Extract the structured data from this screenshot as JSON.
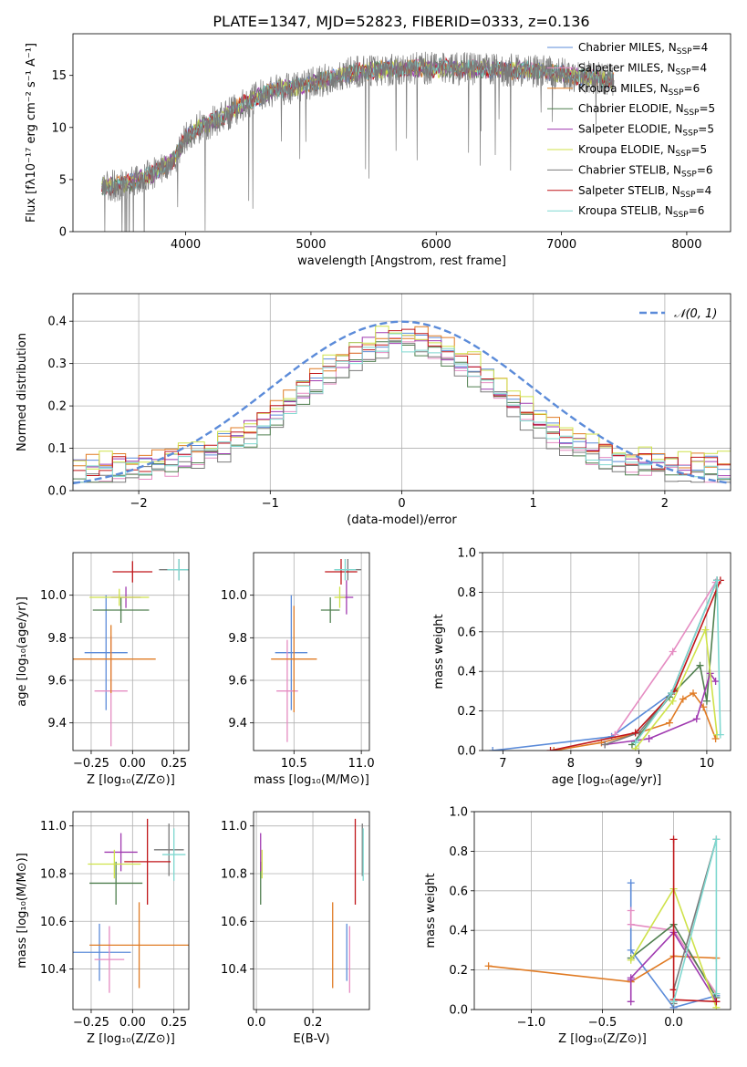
{
  "figure": {
    "title": "PLATE=1347, MJD=52823, FIBERID=0333, z=0.136"
  },
  "colors": {
    "chabrier_miles": "#5b8bd9",
    "salpeter_miles": "#e58cc2",
    "kroupa_miles": "#e07b24",
    "chabrier_elodie": "#4f7f4f",
    "salpeter_elodie": "#a03ab0",
    "kroupa_elodie": "#cfe24a",
    "chabrier_stelib": "#7a7a7a",
    "salpeter_stelib": "#c0161a",
    "kroupa_stelib": "#7fd8d0",
    "gauss": "#5b8bd9",
    "grid": "#b0b0b0"
  },
  "chart_data": [
    {
      "id": "spectrum",
      "type": "line",
      "xlabel": "wavelength [Angstrom, rest frame]",
      "ylabel": "Flux [fλ10⁻¹⁷ erg cm⁻² s⁻¹ A⁻¹]",
      "xlim": [
        3100,
        8350
      ],
      "ylim": [
        0,
        19
      ],
      "xticks": [
        "4000",
        "5000",
        "6000",
        "7000",
        "8000"
      ],
      "yticks": [
        "0",
        "5",
        "10",
        "15"
      ],
      "xtick_values": [
        4000,
        5000,
        6000,
        7000,
        8000
      ],
      "ytick_values": [
        0,
        5,
        10,
        15
      ],
      "grid": false,
      "legend_position": "top-right",
      "continuum": {
        "wavelength": [
          3330,
          3500,
          3700,
          3900,
          4000,
          4100,
          4300,
          4500,
          4700,
          4900,
          5100,
          5300,
          5500,
          5700,
          5900,
          6100,
          6300,
          6500,
          6700,
          6900,
          7100,
          7300,
          7420
        ],
        "flux": [
          4.3,
          4.5,
          5.3,
          6.8,
          9.0,
          10.0,
          11.0,
          12.5,
          13.6,
          13.9,
          14.5,
          15.2,
          15.5,
          15.6,
          15.7,
          15.7,
          15.6,
          15.5,
          15.5,
          15.3,
          15.0,
          14.7,
          14.5
        ]
      },
      "series": [
        {
          "name": "Chabrier MILES, N_SSP=4",
          "label_main": "Chabrier MILES, N",
          "label_sub": "SSP",
          "label_end": "=4",
          "color_key": "chabrier_miles"
        },
        {
          "name": "Salpeter MILES, N_SSP=4",
          "label_main": "Salpeter MILES, N",
          "label_sub": "SSP",
          "label_end": "=4",
          "color_key": "salpeter_miles"
        },
        {
          "name": "Kroupa MILES, N_SSP=6",
          "label_main": "Kroupa MILES, N",
          "label_sub": "SSP",
          "label_end": "=6",
          "color_key": "kroupa_miles"
        },
        {
          "name": "Chabrier ELODIE, N_SSP=5",
          "label_main": "Chabrier ELODIE, N",
          "label_sub": "SSP",
          "label_end": "=5",
          "color_key": "chabrier_elodie"
        },
        {
          "name": "Salpeter ELODIE, N_SSP=5",
          "label_main": "Salpeter ELODIE, N",
          "label_sub": "SSP",
          "label_end": "=5",
          "color_key": "salpeter_elodie"
        },
        {
          "name": "Kroupa ELODIE, N_SSP=5",
          "label_main": "Kroupa ELODIE, N",
          "label_sub": "SSP",
          "label_end": "=5",
          "color_key": "kroupa_elodie"
        },
        {
          "name": "Chabrier STELIB, N_SSP=6",
          "label_main": "Chabrier STELIB, N",
          "label_sub": "SSP",
          "label_end": "=6",
          "color_key": "chabrier_stelib"
        },
        {
          "name": "Salpeter STELIB, N_SSP=4",
          "label_main": "Salpeter STELIB, N",
          "label_sub": "SSP",
          "label_end": "=4",
          "color_key": "salpeter_stelib"
        },
        {
          "name": "Kroupa STELIB, N_SSP=6",
          "label_main": "Kroupa STELIB, N",
          "label_sub": "SSP",
          "label_end": "=6",
          "color_key": "kroupa_stelib"
        }
      ]
    },
    {
      "id": "residuals",
      "type": "line",
      "xlabel": "(data-model)/error",
      "ylabel": "Normed distribution",
      "xlim": [
        -2.5,
        2.5
      ],
      "ylim": [
        0,
        0.465
      ],
      "xticks": [
        "−2",
        "−1",
        "0",
        "1",
        "2"
      ],
      "xtick_values": [
        -2,
        -1,
        0,
        1,
        2
      ],
      "yticks": [
        "0.0",
        "0.1",
        "0.2",
        "0.3",
        "0.4"
      ],
      "ytick_values": [
        0,
        0.1,
        0.2,
        0.3,
        0.4
      ],
      "grid": true,
      "legend_position": "top-right",
      "legend_label": "𝒩(0, 1)",
      "bin_width": 0.1,
      "bin_start": -2.5,
      "hist_offsets": [
        0.012,
        -0.008,
        0.02,
        -0.015,
        0.005,
        0.025,
        -0.02,
        0.01,
        -0.005
      ]
    },
    {
      "id": "age_vs_Z",
      "type": "scatter",
      "xlabel": "Z [log₁₀(Z/Z⊙)]",
      "ylabel": "age  [log₁₀(age/yr)]",
      "xlim": [
        -0.36,
        0.34
      ],
      "ylim": [
        9.27,
        10.2
      ],
      "xticks": [
        "−0.25",
        "0.00",
        "0.25"
      ],
      "xtick_values": [
        -0.25,
        0,
        0.25
      ],
      "yticks": [
        "9.4",
        "9.6",
        "9.8",
        "10.0"
      ],
      "ytick_values": [
        9.4,
        9.6,
        9.8,
        10.0
      ],
      "grid": true,
      "points": [
        {
          "x": -0.16,
          "xerr": 0.13,
          "y": 9.73,
          "yerr": 0.27,
          "color_key": "chabrier_miles"
        },
        {
          "x": -0.13,
          "xerr": 0.1,
          "y": 9.55,
          "yerr": 0.26,
          "color_key": "salpeter_miles"
        },
        {
          "x": -0.13,
          "xerr": 0.27,
          "y": 9.7,
          "yerr": 0.16,
          "color_key": "kroupa_miles"
        },
        {
          "x": -0.07,
          "xerr": 0.17,
          "y": 9.93,
          "yerr": 0.06,
          "color_key": "chabrier_elodie"
        },
        {
          "x": -0.04,
          "xerr": 0.09,
          "y": 9.99,
          "yerr": 0.05,
          "color_key": "salpeter_elodie"
        },
        {
          "x": -0.08,
          "xerr": 0.18,
          "y": 9.99,
          "yerr": 0.04,
          "color_key": "kroupa_elodie"
        },
        {
          "x": 0.28,
          "xerr": 0.12,
          "y": 10.12,
          "yerr": 0.05,
          "color_key": "chabrier_stelib"
        },
        {
          "x": 0.0,
          "xerr": 0.12,
          "y": 10.11,
          "yerr": 0.05,
          "color_key": "salpeter_stelib"
        },
        {
          "x": 0.28,
          "xerr": 0.07,
          "y": 10.12,
          "yerr": 0.05,
          "color_key": "kroupa_stelib"
        }
      ]
    },
    {
      "id": "age_vs_mass",
      "type": "scatter",
      "xlabel": "mass [log₁₀(M/M⊙)]",
      "ylabel": "",
      "xlim": [
        10.2,
        11.06
      ],
      "ylim": [
        9.27,
        10.2
      ],
      "xticks": [
        "10.5",
        "11.0"
      ],
      "xtick_values": [
        10.5,
        11.0
      ],
      "yticks": [
        "9.4",
        "9.6",
        "9.8",
        "10.0"
      ],
      "ytick_values": [
        9.4,
        9.6,
        9.8,
        10.0
      ],
      "grid": true,
      "points": [
        {
          "x": 10.48,
          "xerr": 0.12,
          "y": 9.73,
          "yerr": 0.27,
          "color_key": "chabrier_miles"
        },
        {
          "x": 10.45,
          "xerr": 0.08,
          "y": 9.55,
          "yerr": 0.24,
          "color_key": "salpeter_miles"
        },
        {
          "x": 10.5,
          "xerr": 0.17,
          "y": 9.7,
          "yerr": 0.25,
          "color_key": "kroupa_miles"
        },
        {
          "x": 10.77,
          "xerr": 0.07,
          "y": 9.93,
          "yerr": 0.06,
          "color_key": "chabrier_elodie"
        },
        {
          "x": 10.89,
          "xerr": 0.05,
          "y": 9.99,
          "yerr": 0.08,
          "color_key": "salpeter_elodie"
        },
        {
          "x": 10.84,
          "xerr": 0.04,
          "y": 9.99,
          "yerr": 0.05,
          "color_key": "kroupa_elodie"
        },
        {
          "x": 10.9,
          "xerr": 0.1,
          "y": 10.12,
          "yerr": 0.05,
          "color_key": "chabrier_stelib"
        },
        {
          "x": 10.85,
          "xerr": 0.12,
          "y": 10.11,
          "yerr": 0.06,
          "color_key": "salpeter_stelib"
        },
        {
          "x": 10.88,
          "xerr": 0.08,
          "y": 10.12,
          "yerr": 0.05,
          "color_key": "kroupa_stelib"
        }
      ]
    },
    {
      "id": "weight_vs_age",
      "type": "line",
      "xlabel": "age  [log₁₀(age/yr)]",
      "ylabel": "mass weight",
      "xlim": [
        6.7,
        10.35
      ],
      "ylim": [
        0,
        1.0
      ],
      "xticks": [
        "7",
        "8",
        "9",
        "10"
      ],
      "xtick_values": [
        7,
        8,
        9,
        10
      ],
      "yticks": [
        "0.0",
        "0.2",
        "0.4",
        "0.6",
        "0.8",
        "1.0"
      ],
      "ytick_values": [
        0,
        0.2,
        0.4,
        0.6,
        0.8,
        1.0
      ],
      "grid": true,
      "series": [
        {
          "color_key": "chabrier_miles",
          "x": [
            6.85,
            8.6,
            9.48,
            10.15
          ],
          "y": [
            0.0,
            0.07,
            0.29,
            0.86
          ]
        },
        {
          "color_key": "salpeter_miles",
          "x": [
            8.65,
            9.5,
            10.13
          ],
          "y": [
            0.08,
            0.5,
            0.85
          ]
        },
        {
          "color_key": "kroupa_miles",
          "x": [
            7.75,
            8.45,
            9.0,
            9.45,
            9.65,
            9.8,
            9.95,
            10.13
          ],
          "y": [
            0.0,
            0.04,
            0.09,
            0.14,
            0.26,
            0.29,
            0.22,
            0.06
          ]
        },
        {
          "color_key": "chabrier_elodie",
          "x": [
            8.9,
            9.45,
            9.9,
            10.0,
            10.15
          ],
          "y": [
            0.03,
            0.27,
            0.43,
            0.25,
            0.86
          ]
        },
        {
          "color_key": "salpeter_elodie",
          "x": [
            8.5,
            9.15,
            9.85,
            10.05,
            10.13
          ],
          "y": [
            0.03,
            0.06,
            0.16,
            0.39,
            0.35
          ]
        },
        {
          "color_key": "kroupa_elodie",
          "x": [
            8.95,
            9.5,
            9.98,
            10.15
          ],
          "y": [
            0.01,
            0.25,
            0.61,
            0.08
          ]
        },
        {
          "color_key": "chabrier_stelib",
          "x": [
            8.5,
            9.0,
            9.48,
            10.15
          ],
          "y": [
            0.03,
            0.09,
            0.29,
            0.86
          ]
        },
        {
          "color_key": "salpeter_stelib",
          "x": [
            7.7,
            8.95,
            9.52,
            10.2
          ],
          "y": [
            0.0,
            0.09,
            0.3,
            0.86
          ]
        },
        {
          "color_key": "kroupa_stelib",
          "x": [
            8.95,
            9.48,
            10.15,
            10.2
          ],
          "y": [
            0.04,
            0.29,
            0.86,
            0.08
          ]
        }
      ]
    },
    {
      "id": "mass_vs_Z",
      "type": "scatter",
      "xlabel": "Z [log₁₀(Z/Z⊙)]",
      "ylabel": "mass [log₁₀(M/M⊙)]",
      "xlim": [
        -0.36,
        0.34
      ],
      "ylim": [
        10.23,
        11.06
      ],
      "xticks": [
        "−0.25",
        "0.00",
        "0.25"
      ],
      "xtick_values": [
        -0.25,
        0,
        0.25
      ],
      "yticks": [
        "10.4",
        "10.6",
        "10.8",
        "11.0"
      ],
      "ytick_values": [
        10.4,
        10.6,
        10.8,
        11.0
      ],
      "grid": true,
      "points": [
        {
          "x": -0.2,
          "xerr": 0.19,
          "y": 10.47,
          "yerr": 0.12,
          "color_key": "chabrier_miles"
        },
        {
          "x": -0.14,
          "xerr": 0.09,
          "y": 10.44,
          "yerr": 0.14,
          "color_key": "salpeter_miles"
        },
        {
          "x": 0.04,
          "xerr": 0.3,
          "y": 10.5,
          "yerr": 0.18,
          "color_key": "kroupa_miles"
        },
        {
          "x": -0.1,
          "xerr": 0.16,
          "y": 10.76,
          "yerr": 0.09,
          "color_key": "chabrier_elodie"
        },
        {
          "x": -0.07,
          "xerr": 0.1,
          "y": 10.89,
          "yerr": 0.08,
          "color_key": "salpeter_elodie"
        },
        {
          "x": -0.11,
          "xerr": 0.16,
          "y": 10.84,
          "yerr": 0.06,
          "color_key": "kroupa_elodie"
        },
        {
          "x": 0.22,
          "xerr": 0.09,
          "y": 10.9,
          "yerr": 0.11,
          "color_key": "chabrier_stelib"
        },
        {
          "x": 0.09,
          "xerr": 0.14,
          "y": 10.85,
          "yerr": 0.18,
          "color_key": "salpeter_stelib"
        },
        {
          "x": 0.25,
          "xerr": 0.07,
          "y": 10.88,
          "yerr": 0.11,
          "color_key": "kroupa_stelib"
        }
      ]
    },
    {
      "id": "mass_vs_ebv",
      "type": "scatter",
      "xlabel": "E(B-V)",
      "ylabel": "",
      "xlim": [
        -0.01,
        0.4
      ],
      "ylim": [
        10.23,
        11.06
      ],
      "xticks": [
        "0.0",
        "0.2"
      ],
      "xtick_values": [
        0.0,
        0.2
      ],
      "yticks": [
        "10.4",
        "10.6",
        "10.8",
        "11.0"
      ],
      "ytick_values": [
        10.4,
        10.6,
        10.8,
        11.0
      ],
      "grid": true,
      "points": [
        {
          "x": 0.32,
          "xerr": 0,
          "y": 10.47,
          "yerr": 0.12,
          "color_key": "chabrier_miles"
        },
        {
          "x": 0.33,
          "xerr": 0,
          "y": 10.44,
          "yerr": 0.14,
          "color_key": "salpeter_miles"
        },
        {
          "x": 0.27,
          "xerr": 0,
          "y": 10.5,
          "yerr": 0.18,
          "color_key": "kroupa_miles"
        },
        {
          "x": 0.015,
          "xerr": 0,
          "y": 10.76,
          "yerr": 0.09,
          "color_key": "chabrier_elodie"
        },
        {
          "x": 0.015,
          "xerr": 0,
          "y": 10.89,
          "yerr": 0.08,
          "color_key": "salpeter_elodie"
        },
        {
          "x": 0.02,
          "xerr": 0,
          "y": 10.84,
          "yerr": 0.06,
          "color_key": "kroupa_elodie"
        },
        {
          "x": 0.375,
          "xerr": 0,
          "y": 10.9,
          "yerr": 0.11,
          "color_key": "chabrier_stelib"
        },
        {
          "x": 0.35,
          "xerr": 0,
          "y": 10.85,
          "yerr": 0.18,
          "color_key": "salpeter_stelib"
        },
        {
          "x": 0.378,
          "xerr": 0,
          "y": 10.88,
          "yerr": 0.11,
          "color_key": "kroupa_stelib"
        }
      ]
    },
    {
      "id": "weight_vs_Z",
      "type": "line",
      "xlabel": "Z [log₁₀(Z/Z⊙)]",
      "ylabel": "mass weight",
      "xlim": [
        -1.4,
        0.4
      ],
      "ylim": [
        0,
        1.0
      ],
      "xticks": [
        "−1.0",
        "−0.5",
        "0.0"
      ],
      "xtick_values": [
        -1.0,
        -0.5,
        0.0
      ],
      "yticks": [
        "0.0",
        "0.2",
        "0.4",
        "0.6",
        "0.8",
        "1.0"
      ],
      "ytick_values": [
        0,
        0.2,
        0.4,
        0.6,
        0.8,
        1.0
      ],
      "grid": true,
      "series": [
        {
          "color_key": "chabrier_miles",
          "x": [
            -0.3,
            -0.3,
            0.0,
            0.3
          ],
          "y": [
            0.64,
            0.3,
            0.01,
            0.07
          ]
        },
        {
          "color_key": "salpeter_miles",
          "x": [
            -0.3,
            -0.3,
            0.0,
            0.3
          ],
          "y": [
            0.5,
            0.43,
            0.4,
            0.08
          ]
        },
        {
          "color_key": "kroupa_miles",
          "x": [
            -1.3,
            -0.3,
            0.0,
            0.3
          ],
          "y": [
            0.22,
            0.14,
            0.27,
            0.26
          ]
        },
        {
          "color_key": "chabrier_elodie",
          "x": [
            -0.3,
            0.0,
            0.3
          ],
          "y": [
            0.26,
            0.43,
            0.06
          ]
        },
        {
          "color_key": "salpeter_elodie",
          "x": [
            -0.3,
            -0.3,
            -0.3,
            0.0,
            0.3
          ],
          "y": [
            0.04,
            0.15,
            0.16,
            0.39,
            0.04
          ]
        },
        {
          "color_key": "kroupa_elodie",
          "x": [
            -0.3,
            0.0,
            0.3
          ],
          "y": [
            0.25,
            0.61,
            0.01
          ]
        },
        {
          "color_key": "chabrier_stelib",
          "x": [
            0.0,
            0.0,
            0.3
          ],
          "y": [
            0.03,
            0.1,
            0.86
          ]
        },
        {
          "color_key": "salpeter_stelib",
          "x": [
            0.0,
            0.0,
            0.0,
            0.3
          ],
          "y": [
            0.86,
            0.1,
            0.05,
            0.04
          ]
        },
        {
          "color_key": "kroupa_stelib",
          "x": [
            0.0,
            0.3,
            0.3
          ],
          "y": [
            0.04,
            0.86,
            0.08
          ]
        }
      ]
    }
  ]
}
